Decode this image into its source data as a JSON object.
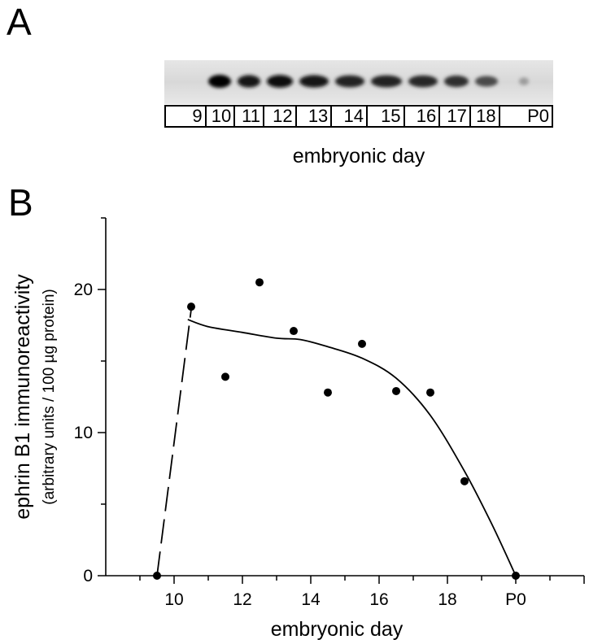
{
  "panel_a": {
    "letter": "A",
    "lanes": [
      "9",
      "10",
      "11",
      "12",
      "13",
      "14",
      "15",
      "16",
      "17",
      "18",
      "P0"
    ],
    "band_intensity": [
      0.0,
      1.0,
      0.92,
      0.95,
      0.92,
      0.88,
      0.88,
      0.85,
      0.82,
      0.7,
      0.35
    ],
    "xlabel": "embryonic day"
  },
  "panel_b": {
    "letter": "B"
  },
  "chart_data": {
    "type": "scatter",
    "title": "",
    "xlabel": "embryonic day",
    "ylabel": "ephrin B1 immunoreactivity",
    "ylabel_sub": "(arbitrary units / 100 µg protein)",
    "xlim": [
      8,
      22
    ],
    "ylim": [
      0,
      25
    ],
    "x_ticks": [
      {
        "value": 10,
        "label": "10"
      },
      {
        "value": 12,
        "label": "12"
      },
      {
        "value": 14,
        "label": "14"
      },
      {
        "value": 16,
        "label": "16"
      },
      {
        "value": 18,
        "label": "18"
      },
      {
        "value": 20,
        "label": "P0"
      }
    ],
    "y_ticks": [
      {
        "value": 0,
        "label": "0"
      },
      {
        "value": 10,
        "label": "10"
      },
      {
        "value": 20,
        "label": "20"
      }
    ],
    "grid": false,
    "series": [
      {
        "points": [
          {
            "x": 9.5,
            "y": 0
          },
          {
            "x": 10.5,
            "y": 18.8
          },
          {
            "x": 11.5,
            "y": 13.9
          },
          {
            "x": 12.5,
            "y": 20.5
          },
          {
            "x": 13.5,
            "y": 17.1
          },
          {
            "x": 14.5,
            "y": 12.8
          },
          {
            "x": 15.5,
            "y": 16.2
          },
          {
            "x": 16.5,
            "y": 12.9
          },
          {
            "x": 17.5,
            "y": 12.8
          },
          {
            "x": 18.5,
            "y": 6.6
          },
          {
            "x": 20,
            "y": 0
          }
        ]
      }
    ],
    "fit_curve": [
      {
        "x": 10.4,
        "y": 17.9
      },
      {
        "x": 11.0,
        "y": 17.4
      },
      {
        "x": 12.0,
        "y": 17.0
      },
      {
        "x": 13.0,
        "y": 16.6
      },
      {
        "x": 13.7,
        "y": 16.5
      },
      {
        "x": 14.5,
        "y": 16.0
      },
      {
        "x": 15.5,
        "y": 15.2
      },
      {
        "x": 16.5,
        "y": 13.8
      },
      {
        "x": 17.5,
        "y": 11.2
      },
      {
        "x": 18.5,
        "y": 7.3
      },
      {
        "x": 19.3,
        "y": 3.6
      },
      {
        "x": 20.0,
        "y": 0.0
      }
    ],
    "dashed_segment": [
      {
        "x": 9.5,
        "y": 0
      },
      {
        "x": 10.5,
        "y": 18.6
      }
    ]
  }
}
